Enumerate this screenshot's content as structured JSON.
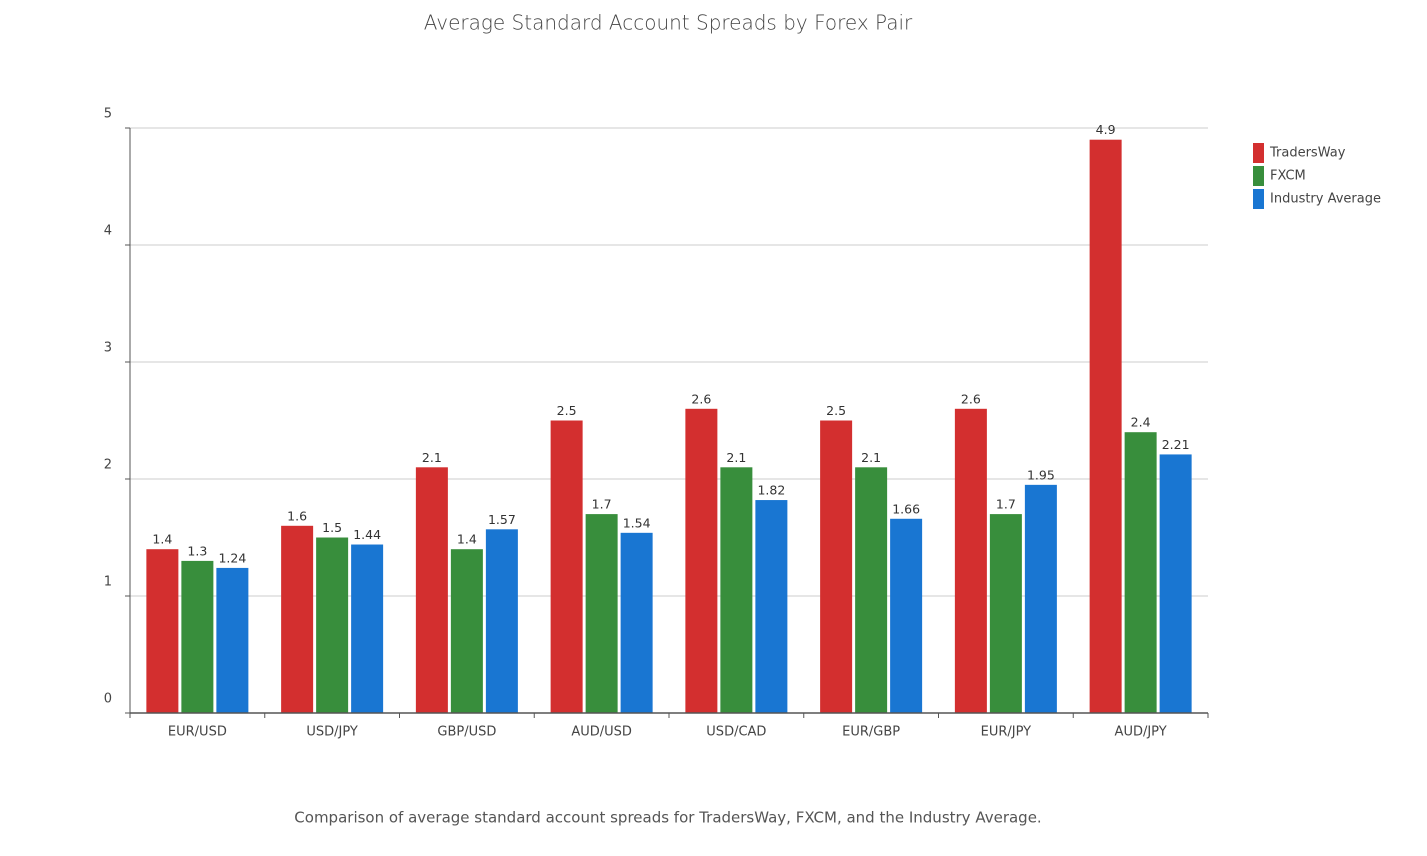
{
  "chart_data": {
    "type": "bar",
    "title": "Average Standard Account Spreads by Forex Pair",
    "caption": "Comparison of average standard account spreads for TradersWay, FXCM, and the Industry Average.",
    "categories": [
      "EUR/USD",
      "USD/JPY",
      "GBP/USD",
      "AUD/USD",
      "USD/CAD",
      "EUR/GBP",
      "EUR/JPY",
      "AUD/JPY"
    ],
    "series": [
      {
        "name": "TradersWay",
        "color": "#d32f2f",
        "values": [
          1.4,
          1.6,
          2.1,
          2.5,
          2.6,
          2.5,
          2.6,
          4.9
        ]
      },
      {
        "name": "FXCM",
        "color": "#388e3c",
        "values": [
          1.3,
          1.5,
          1.4,
          1.7,
          2.1,
          2.1,
          1.7,
          2.4
        ]
      },
      {
        "name": "Industry Average",
        "color": "#1976d2",
        "values": [
          1.24,
          1.44,
          1.57,
          1.54,
          1.82,
          1.66,
          1.95,
          2.21
        ]
      }
    ],
    "ylim": [
      0,
      5
    ],
    "yticks": [
      0,
      1,
      2,
      3,
      4,
      5
    ],
    "grid": true,
    "legend": "right",
    "data_labels": true
  }
}
